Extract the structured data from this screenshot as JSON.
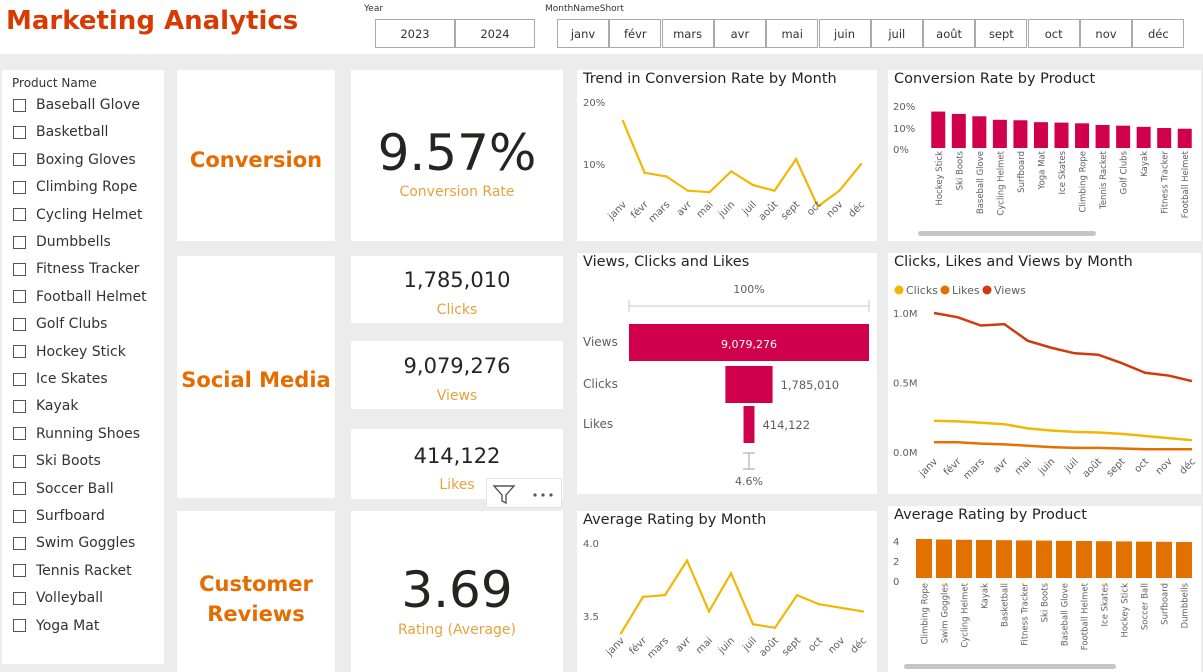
{
  "header": {
    "title": "Marketing Analytics"
  },
  "year_slicer": {
    "label": "Year",
    "options": [
      "2023",
      "2024"
    ]
  },
  "month_slicer": {
    "label": "MonthNameShort",
    "options": [
      "janv",
      "févr",
      "mars",
      "avr",
      "mai",
      "juin",
      "juil",
      "août",
      "sept",
      "oct",
      "nov",
      "déc"
    ]
  },
  "product_slicer": {
    "label": "Product Name",
    "items": [
      "Baseball Glove",
      "Basketball",
      "Boxing Gloves",
      "Climbing Rope",
      "Cycling Helmet",
      "Dumbbells",
      "Fitness Tracker",
      "Football Helmet",
      "Golf Clubs",
      "Hockey Stick",
      "Ice Skates",
      "Kayak",
      "Running Shoes",
      "Ski Boots",
      "Soccer Ball",
      "Surfboard",
      "Swim Goggles",
      "Tennis Racket",
      "Volleyball",
      "Yoga Mat"
    ]
  },
  "sections": {
    "conversion": "Conversion",
    "social": "Social Media",
    "reviews_line1": "Customer",
    "reviews_line2": "Reviews"
  },
  "kpis": {
    "conversion": {
      "value": "9.57%",
      "label": "Conversion Rate"
    },
    "clicks": {
      "value": "1,785,010",
      "label": "Clicks"
    },
    "views": {
      "value": "9,079,276",
      "label": "Views"
    },
    "likes": {
      "value": "414,122",
      "label": "Likes"
    },
    "rating": {
      "value": "3.69",
      "label": "Rating (Average)"
    }
  },
  "colors": {
    "accent_orange": "#e66c00",
    "title_red": "#d83b01",
    "line_yellow": "#f2b705",
    "bar_crimson": "#d1004c",
    "bar_orange": "#e37100",
    "views_red": "#d13b0b",
    "label_amber": "#e6a23c"
  },
  "chart_data": [
    {
      "id": "trend_conversion",
      "type": "line",
      "title": "Trend in Conversion Rate by Month",
      "categories": [
        "janv",
        "févr",
        "mars",
        "avr",
        "mai",
        "juin",
        "juil",
        "août",
        "sept",
        "oct",
        "nov",
        "déc"
      ],
      "values": [
        17.5,
        10.3,
        9.8,
        7.8,
        7.6,
        10.5,
        8.6,
        7.8,
        12.2,
        5.6,
        7.8,
        11.5
      ],
      "yticks": [
        "20%",
        "10%"
      ],
      "ylim": [
        4,
        21
      ]
    },
    {
      "id": "conversion_by_product",
      "type": "bar",
      "title": "Conversion Rate by Product",
      "categories": [
        "Hockey Stick",
        "Ski Boots",
        "Baseball Glove",
        "Cycling Helmet",
        "Surfboard",
        "Yoga Mat",
        "Ice Skates",
        "Climbing Rope",
        "Tennis Racket",
        "Golf Clubs",
        "Kayak",
        "Fitness Tracker",
        "Football Helmet"
      ],
      "values": [
        15.5,
        14.5,
        13.5,
        12.0,
        11.8,
        11.0,
        10.8,
        10.5,
        9.8,
        9.5,
        9.0,
        8.5,
        8.2
      ],
      "yticks": [
        "20%",
        "10%",
        "0%"
      ],
      "ylim": [
        0,
        20
      ]
    },
    {
      "id": "funnel",
      "type": "bar",
      "title": "Views, Clicks and Likes",
      "categories": [
        "Views",
        "Clicks",
        "Likes"
      ],
      "values": [
        9079276,
        1785010,
        414122
      ],
      "value_labels": [
        "9,079,276",
        "1,785,010",
        "414,122"
      ],
      "top_percent": "100%",
      "bottom_percent": "4.6%"
    },
    {
      "id": "clv_by_month",
      "type": "line",
      "title": "Clicks, Likes and Views by Month",
      "categories": [
        "janv",
        "févr",
        "mars",
        "avr",
        "mai",
        "juin",
        "juil",
        "août",
        "sept",
        "oct",
        "nov",
        "déc"
      ],
      "series": [
        {
          "name": "Clicks",
          "color": "#f2b705",
          "values": [
            0.225,
            0.22,
            0.21,
            0.2,
            0.17,
            0.155,
            0.145,
            0.14,
            0.13,
            0.115,
            0.1,
            0.085
          ]
        },
        {
          "name": "Likes",
          "color": "#e37100",
          "values": [
            0.07,
            0.07,
            0.06,
            0.055,
            0.045,
            0.035,
            0.03,
            0.03,
            0.025,
            0.02,
            0.02,
            0.02
          ]
        },
        {
          "name": "Views",
          "color": "#d13b0b",
          "values": [
            1.0,
            0.97,
            0.91,
            0.92,
            0.8,
            0.75,
            0.71,
            0.7,
            0.64,
            0.57,
            0.55,
            0.51
          ]
        }
      ],
      "yticks": [
        "1.0M",
        "0.5M",
        "0.0M"
      ],
      "ylim": [
        0,
        1.0
      ]
    },
    {
      "id": "rating_by_month",
      "type": "line",
      "title": "Average Rating by Month",
      "categories": [
        "janv",
        "févr",
        "mars",
        "avr",
        "mai",
        "juin",
        "juil",
        "août",
        "sept",
        "oct",
        "nov",
        "déc"
      ],
      "values": [
        3.52,
        3.72,
        3.73,
        3.92,
        3.64,
        3.85,
        3.57,
        3.55,
        3.73,
        3.68,
        3.66,
        3.64
      ],
      "yticks": [
        "4.0",
        "3.5"
      ],
      "ylim": [
        3.45,
        4.05
      ]
    },
    {
      "id": "rating_by_product",
      "type": "bar",
      "title": "Average Rating by Product",
      "categories": [
        "Climbing Rope",
        "Swim Goggles",
        "Cycling Helmet",
        "Kayak",
        "Basketball",
        "Fitness Tracker",
        "Ski Boots",
        "Baseball Glove",
        "Football Helmet",
        "Ice Skates",
        "Hockey Stick",
        "Soccer Ball",
        "Surfboard",
        "Dumbbells"
      ],
      "values": [
        3.9,
        3.85,
        3.82,
        3.8,
        3.78,
        3.76,
        3.74,
        3.72,
        3.7,
        3.68,
        3.66,
        3.64,
        3.62,
        3.6
      ],
      "yticks": [
        "4",
        "2",
        "0"
      ],
      "ylim": [
        0,
        4
      ]
    }
  ]
}
